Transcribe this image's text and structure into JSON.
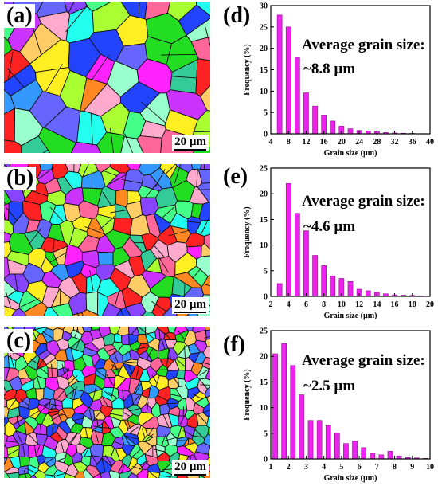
{
  "maps": [
    {
      "label": "(a)",
      "scale": "20 µm",
      "seed": 11,
      "cols": 8,
      "rows": 6
    },
    {
      "label": "(b)",
      "scale": "20 µm",
      "seed": 23,
      "cols": 14,
      "rows": 10
    },
    {
      "label": "(c)",
      "scale": "20 µm",
      "seed": 37,
      "cols": 22,
      "rows": 16
    }
  ],
  "colors": {
    "bar": "#ee22ee",
    "grains": [
      "#ff2222",
      "#22dd22",
      "#2244ff",
      "#ff22ff",
      "#22ffee",
      "#ffee22",
      "#ff8822",
      "#8844ff",
      "#44ff88",
      "#ff6699",
      "#3399ff",
      "#aaff33",
      "#cc33ff",
      "#ffaacc",
      "#33cc99",
      "#ffcc66",
      "#6666ff",
      "#99ffcc"
    ]
  },
  "chart_data": [
    {
      "type": "bar",
      "label": "(d)",
      "annotation": "Average grain size:",
      "annotation_value": "~8.8 µm",
      "xlabel": "Grain size (µm)",
      "ylabel": "Frequency (%)",
      "xlim": [
        4,
        40
      ],
      "ylim": [
        0,
        30
      ],
      "xticks": [
        4,
        8,
        12,
        16,
        20,
        24,
        28,
        32,
        36,
        40
      ],
      "yticks": [
        0,
        5,
        10,
        15,
        20,
        25,
        30
      ],
      "bin_width": 2,
      "x": [
        6,
        8,
        10,
        12,
        14,
        16,
        18,
        20,
        22,
        24,
        26,
        28,
        30,
        32,
        34,
        36,
        38
      ],
      "values": [
        27.8,
        25,
        17.8,
        9.6,
        6.5,
        4.4,
        3,
        1.8,
        1.2,
        0.8,
        0.7,
        0.5,
        0.3,
        0.2,
        0.15,
        0.1,
        0.05
      ]
    },
    {
      "type": "bar",
      "label": "(e)",
      "annotation": "Average grain size:",
      "annotation_value": "~4.6 µm",
      "xlabel": "Grain size (µm)",
      "ylabel": "Frequency (%)",
      "xlim": [
        2,
        20
      ],
      "ylim": [
        0,
        25
      ],
      "xticks": [
        2,
        4,
        6,
        8,
        10,
        12,
        14,
        16,
        18,
        20
      ],
      "yticks": [
        0,
        5,
        10,
        15,
        20,
        25
      ],
      "bin_width": 1,
      "x": [
        3,
        4,
        5,
        6,
        7,
        8,
        9,
        10,
        11,
        12,
        13,
        14,
        15,
        16,
        17,
        18,
        19
      ],
      "values": [
        2.5,
        22,
        16.2,
        12.8,
        8,
        6,
        4,
        3.5,
        2.9,
        1.4,
        1.1,
        0.8,
        0.5,
        0.3,
        0.25,
        0.2,
        0.1
      ]
    },
    {
      "type": "bar",
      "label": "(f)",
      "annotation": "Average grain size:",
      "annotation_value": "~2.5 µm",
      "xlabel": "Grain size (µm)",
      "ylabel": "Frequency (%)",
      "xlim": [
        1,
        10
      ],
      "ylim": [
        0,
        25
      ],
      "xticks": [
        1,
        2,
        3,
        4,
        5,
        6,
        7,
        8,
        9,
        10
      ],
      "yticks": [
        0,
        5,
        10,
        15,
        20,
        25
      ],
      "bin_width": 0.5,
      "x": [
        1.25,
        1.75,
        2.25,
        2.75,
        3.25,
        3.75,
        4.25,
        4.75,
        5.25,
        5.75,
        6.25,
        6.75,
        7.25,
        7.75,
        8.25,
        8.75,
        9.25,
        9.75
      ],
      "values": [
        20.5,
        22.5,
        18.2,
        12.5,
        7.5,
        7.5,
        6.5,
        5,
        3,
        3.5,
        2.2,
        1.1,
        0.8,
        1.5,
        0.6,
        0.3,
        0.2,
        0.1
      ]
    }
  ]
}
